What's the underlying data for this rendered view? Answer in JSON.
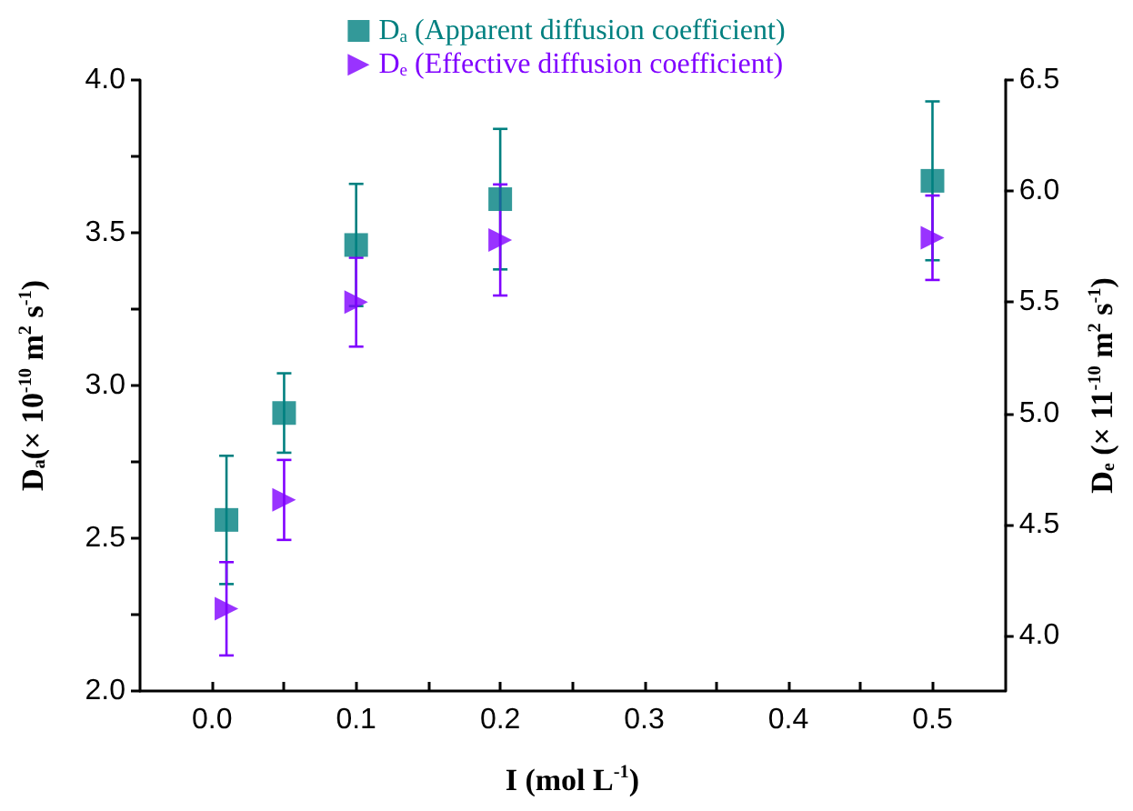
{
  "chart_data": {
    "type": "scatter",
    "xlabel": "I (mol L$^{-1}$)",
    "ylabel": "D$_{a}$(× 10$^{-10}$ m$^{2}$ s$^{-1}$)",
    "y2label": "D$_{e}$ (× 11$^{-10}$ m$^{2}$ s$^{-1}$)",
    "x": [
      0.01,
      0.05,
      0.1,
      0.2,
      0.5
    ],
    "series": [
      {
        "name": "D$_{a}$ (Apparent diffusion coefficient)",
        "color": "#008080",
        "marker": "square",
        "values": [
          2.56,
          2.91,
          3.46,
          3.61,
          3.67
        ],
        "errors": [
          0.21,
          0.13,
          0.2,
          0.23,
          0.26
        ]
      },
      {
        "name": "D$_{e}$ (Effective diffusion coefficient)",
        "color": "#8000ff",
        "marker": "triangle",
        "axis": "y2",
        "values": [
          4.12,
          4.61,
          5.5,
          5.78,
          5.79
        ],
        "errors": [
          0.21,
          0.18,
          0.2,
          0.25,
          0.19
        ]
      }
    ],
    "xlim": [
      -0.05,
      0.55
    ],
    "xticks": [
      {
        "value": 0,
        "label": "0.0"
      },
      {
        "value": 0.05,
        "label": null
      },
      {
        "value": 0.1,
        "label": "0.1"
      },
      {
        "value": 0.15,
        "label": null
      },
      {
        "value": 0.2,
        "label": "0.2"
      },
      {
        "value": 0.25,
        "label": null
      },
      {
        "value": 0.3,
        "label": "0.3"
      },
      {
        "value": 0.35,
        "label": null
      },
      {
        "value": 0.4,
        "label": "0.4"
      },
      {
        "value": 0.45,
        "label": null
      },
      {
        "value": 0.5,
        "label": "0.5"
      }
    ],
    "ylim": [
      2,
      4
    ],
    "yticks": [
      {
        "value": 2,
        "label": "2.0"
      },
      {
        "value": 2.25,
        "label": null
      },
      {
        "value": 2.5,
        "label": "2.5"
      },
      {
        "value": 2.75,
        "label": null
      },
      {
        "value": 3,
        "label": "3.0"
      },
      {
        "value": 3.25,
        "label": null
      },
      {
        "value": 3.5,
        "label": "3.5"
      },
      {
        "value": 3.75,
        "label": null
      },
      {
        "value": 4,
        "label": "4.0"
      }
    ],
    "y2lim": [
      3.75,
      6.5
    ],
    "y2ticks": [
      {
        "value": 4,
        "label": "4.0"
      },
      4.5,
      {
        "value": 5,
        "label": "5.0"
      },
      5.5,
      {
        "value": 6,
        "label": "6.0"
      },
      6.5
    ],
    "grid": false,
    "legend": "top"
  }
}
